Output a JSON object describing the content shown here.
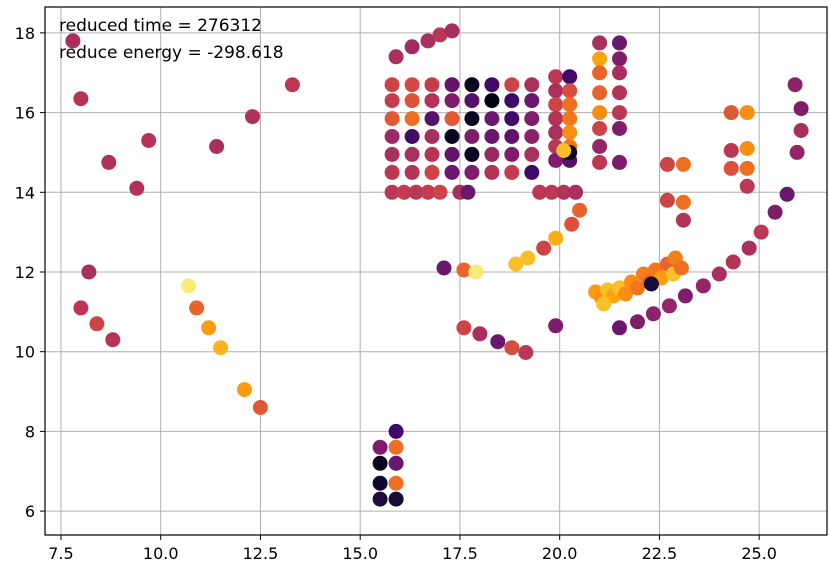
{
  "chart_data": {
    "type": "scatter",
    "title": "",
    "xlabel": "",
    "ylabel": "",
    "xlim": [
      7.1,
      26.7
    ],
    "ylim": [
      5.4,
      18.65
    ],
    "xticks": [
      7.5,
      10.0,
      12.5,
      15.0,
      17.5,
      20.0,
      22.5,
      25.0
    ],
    "xtick_labels": [
      "7.5",
      "10.0",
      "12.5",
      "15.0",
      "17.5",
      "20.0",
      "22.5",
      "25.0"
    ],
    "yticks": [
      6,
      8,
      10,
      12,
      14,
      16,
      18
    ],
    "ytick_labels": [
      "6",
      "8",
      "10",
      "12",
      "14",
      "16",
      "18"
    ],
    "grid": true,
    "legend": "none",
    "colormap": "inferno",
    "annotations": [
      "reduced time = 276312",
      "reduce energy = -298.618"
    ],
    "points": [
      [
        7.8,
        17.8,
        0.45
      ],
      [
        8.0,
        16.35,
        0.48
      ],
      [
        8.7,
        14.75,
        0.47
      ],
      [
        9.7,
        15.3,
        0.48
      ],
      [
        9.4,
        14.1,
        0.47
      ],
      [
        11.4,
        15.15,
        0.45
      ],
      [
        12.3,
        15.9,
        0.47
      ],
      [
        13.3,
        16.7,
        0.5
      ],
      [
        8.2,
        12.0,
        0.45
      ],
      [
        8.0,
        11.1,
        0.5
      ],
      [
        8.4,
        10.7,
        0.55
      ],
      [
        8.8,
        10.3,
        0.48
      ],
      [
        10.7,
        11.65,
        0.95
      ],
      [
        10.9,
        11.1,
        0.65
      ],
      [
        11.2,
        10.6,
        0.78
      ],
      [
        11.5,
        10.1,
        0.83
      ],
      [
        12.1,
        9.05,
        0.78
      ],
      [
        12.5,
        8.6,
        0.62
      ],
      [
        15.5,
        7.6,
        0.35
      ],
      [
        15.5,
        7.2,
        0.05
      ],
      [
        15.5,
        6.7,
        0.08
      ],
      [
        15.5,
        6.3,
        0.12
      ],
      [
        15.9,
        8.0,
        0.2
      ],
      [
        15.9,
        7.6,
        0.68
      ],
      [
        15.9,
        7.2,
        0.3
      ],
      [
        15.9,
        6.7,
        0.68
      ],
      [
        15.9,
        6.3,
        0.1
      ],
      [
        15.9,
        17.4,
        0.45
      ],
      [
        16.3,
        17.65,
        0.43
      ],
      [
        16.7,
        17.8,
        0.45
      ],
      [
        17.0,
        17.95,
        0.5
      ],
      [
        17.3,
        18.05,
        0.45
      ],
      [
        15.8,
        16.7,
        0.55
      ],
      [
        16.3,
        16.7,
        0.57
      ],
      [
        16.8,
        16.7,
        0.52
      ],
      [
        17.3,
        16.7,
        0.28
      ],
      [
        17.8,
        16.7,
        0.05
      ],
      [
        18.3,
        16.7,
        0.2
      ],
      [
        18.8,
        16.7,
        0.55
      ],
      [
        19.3,
        16.7,
        0.45
      ],
      [
        15.8,
        16.3,
        0.52
      ],
      [
        16.3,
        16.3,
        0.6
      ],
      [
        16.8,
        16.3,
        0.48
      ],
      [
        17.3,
        16.3,
        0.35
      ],
      [
        17.8,
        16.3,
        0.25
      ],
      [
        18.3,
        16.3,
        0.02
      ],
      [
        18.8,
        16.3,
        0.2
      ],
      [
        19.3,
        16.3,
        0.3
      ],
      [
        15.8,
        15.85,
        0.62
      ],
      [
        16.3,
        15.85,
        0.68
      ],
      [
        16.8,
        15.85,
        0.25
      ],
      [
        17.3,
        15.85,
        0.62
      ],
      [
        17.8,
        15.85,
        0.05
      ],
      [
        18.3,
        15.85,
        0.3
      ],
      [
        18.8,
        15.85,
        0.2
      ],
      [
        19.3,
        15.85,
        0.35
      ],
      [
        15.8,
        15.4,
        0.42
      ],
      [
        16.3,
        15.4,
        0.2
      ],
      [
        16.8,
        15.4,
        0.45
      ],
      [
        17.3,
        15.4,
        0.05
      ],
      [
        17.8,
        15.4,
        0.35
      ],
      [
        18.3,
        15.4,
        0.3
      ],
      [
        18.8,
        15.4,
        0.28
      ],
      [
        19.3,
        15.4,
        0.38
      ],
      [
        15.8,
        14.95,
        0.45
      ],
      [
        16.3,
        14.95,
        0.45
      ],
      [
        16.8,
        14.95,
        0.48
      ],
      [
        17.3,
        14.95,
        0.28
      ],
      [
        17.8,
        14.95,
        0.05
      ],
      [
        18.3,
        14.95,
        0.42
      ],
      [
        18.8,
        14.95,
        0.35
      ],
      [
        19.3,
        14.95,
        0.45
      ],
      [
        15.8,
        14.5,
        0.5
      ],
      [
        16.3,
        14.5,
        0.48
      ],
      [
        16.8,
        14.5,
        0.55
      ],
      [
        17.3,
        14.5,
        0.3
      ],
      [
        17.8,
        14.5,
        0.35
      ],
      [
        18.3,
        14.5,
        0.48
      ],
      [
        18.8,
        14.5,
        0.52
      ],
      [
        19.3,
        14.5,
        0.2
      ],
      [
        15.8,
        14.0,
        0.5
      ],
      [
        16.1,
        14.0,
        0.52
      ],
      [
        16.4,
        14.0,
        0.5
      ],
      [
        16.7,
        14.0,
        0.52
      ],
      [
        17.0,
        14.0,
        0.55
      ],
      [
        17.5,
        14.0,
        0.45
      ],
      [
        17.7,
        14.0,
        0.3
      ],
      [
        19.9,
        16.9,
        0.5
      ],
      [
        20.25,
        16.9,
        0.2
      ],
      [
        19.9,
        16.55,
        0.45
      ],
      [
        20.25,
        16.55,
        0.58
      ],
      [
        19.9,
        16.2,
        0.55
      ],
      [
        20.25,
        16.2,
        0.68
      ],
      [
        19.9,
        15.85,
        0.48
      ],
      [
        20.25,
        15.85,
        0.7
      ],
      [
        19.9,
        15.5,
        0.45
      ],
      [
        20.25,
        15.5,
        0.75
      ],
      [
        19.9,
        15.15,
        0.5
      ],
      [
        20.25,
        15.15,
        0.7
      ],
      [
        19.9,
        14.8,
        0.35
      ],
      [
        20.25,
        14.8,
        0.25
      ],
      [
        20.25,
        15.0,
        0.05
      ],
      [
        20.1,
        15.05,
        0.85
      ],
      [
        19.5,
        14.0,
        0.5
      ],
      [
        19.8,
        14.0,
        0.5
      ],
      [
        20.1,
        14.0,
        0.48
      ],
      [
        20.4,
        14.0,
        0.45
      ],
      [
        21.0,
        17.75,
        0.45
      ],
      [
        21.5,
        17.75,
        0.3
      ],
      [
        21.0,
        17.35,
        0.8
      ],
      [
        21.5,
        17.35,
        0.35
      ],
      [
        21.0,
        17.0,
        0.65
      ],
      [
        21.5,
        17.0,
        0.45
      ],
      [
        21.0,
        16.5,
        0.65
      ],
      [
        21.5,
        16.5,
        0.48
      ],
      [
        21.0,
        16.0,
        0.75
      ],
      [
        21.5,
        16.0,
        0.5
      ],
      [
        21.0,
        15.6,
        0.55
      ],
      [
        21.5,
        15.6,
        0.35
      ],
      [
        21.0,
        15.15,
        0.4
      ],
      [
        21.0,
        14.75,
        0.5
      ],
      [
        21.5,
        14.75,
        0.35
      ],
      [
        17.1,
        12.1,
        0.3
      ],
      [
        17.6,
        12.05,
        0.65
      ],
      [
        17.9,
        12.0,
        0.95
      ],
      [
        18.9,
        12.2,
        0.85
      ],
      [
        19.2,
        12.35,
        0.85
      ],
      [
        19.6,
        12.6,
        0.55
      ],
      [
        19.9,
        12.85,
        0.82
      ],
      [
        20.3,
        13.2,
        0.6
      ],
      [
        20.5,
        13.55,
        0.65
      ],
      [
        17.6,
        10.6,
        0.55
      ],
      [
        18.0,
        10.45,
        0.45
      ],
      [
        18.45,
        10.25,
        0.3
      ],
      [
        18.8,
        10.1,
        0.58
      ],
      [
        19.15,
        9.98,
        0.5
      ],
      [
        19.9,
        10.65,
        0.35
      ],
      [
        20.9,
        11.5,
        0.78
      ],
      [
        21.05,
        11.35,
        0.75
      ],
      [
        21.2,
        11.55,
        0.85
      ],
      [
        21.35,
        11.4,
        0.8
      ],
      [
        21.5,
        11.6,
        0.85
      ],
      [
        21.65,
        11.45,
        0.75
      ],
      [
        21.8,
        11.75,
        0.75
      ],
      [
        21.95,
        11.6,
        0.7
      ],
      [
        22.1,
        11.95,
        0.72
      ],
      [
        22.25,
        11.75,
        0.65
      ],
      [
        22.4,
        12.05,
        0.7
      ],
      [
        22.55,
        11.85,
        0.78
      ],
      [
        22.7,
        12.2,
        0.65
      ],
      [
        22.85,
        11.95,
        0.85
      ],
      [
        22.9,
        12.35,
        0.72
      ],
      [
        23.05,
        12.1,
        0.68
      ],
      [
        22.3,
        11.7,
        0.1
      ],
      [
        21.1,
        11.2,
        0.85
      ],
      [
        22.7,
        14.7,
        0.55
      ],
      [
        23.1,
        14.7,
        0.68
      ],
      [
        22.7,
        13.8,
        0.55
      ],
      [
        23.1,
        13.75,
        0.68
      ],
      [
        23.1,
        13.3,
        0.48
      ],
      [
        24.3,
        16.0,
        0.62
      ],
      [
        24.7,
        16.0,
        0.75
      ],
      [
        24.3,
        15.05,
        0.5
      ],
      [
        24.7,
        15.1,
        0.75
      ],
      [
        24.3,
        14.6,
        0.6
      ],
      [
        24.7,
        14.6,
        0.68
      ],
      [
        24.7,
        14.15,
        0.5
      ],
      [
        25.9,
        16.7,
        0.38
      ],
      [
        26.05,
        16.1,
        0.35
      ],
      [
        26.05,
        15.55,
        0.45
      ],
      [
        25.95,
        15.0,
        0.4
      ],
      [
        21.5,
        10.6,
        0.3
      ],
      [
        21.95,
        10.75,
        0.35
      ],
      [
        22.35,
        10.95,
        0.38
      ],
      [
        22.75,
        11.15,
        0.4
      ],
      [
        23.15,
        11.4,
        0.35
      ],
      [
        23.6,
        11.65,
        0.4
      ],
      [
        24.0,
        11.95,
        0.45
      ],
      [
        24.35,
        12.25,
        0.48
      ],
      [
        24.75,
        12.6,
        0.45
      ],
      [
        25.05,
        13.0,
        0.5
      ],
      [
        25.4,
        13.5,
        0.35
      ],
      [
        25.7,
        13.95,
        0.3
      ]
    ]
  }
}
